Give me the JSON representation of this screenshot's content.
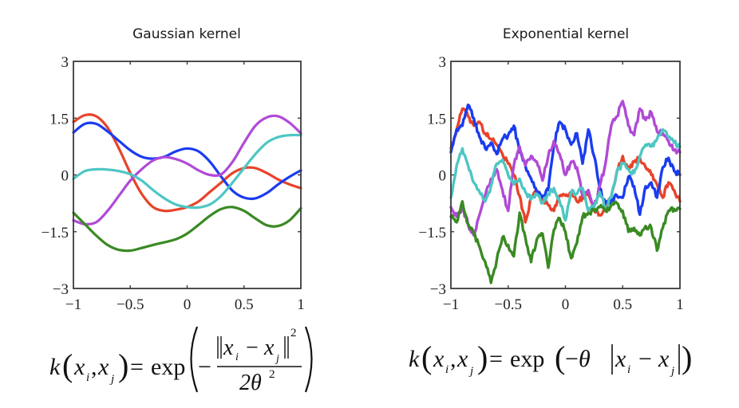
{
  "chart_data": [
    {
      "type": "line",
      "title": "Gaussian kernel",
      "xlabel": "",
      "ylabel": "",
      "xlim": [
        -1,
        1
      ],
      "ylim": [
        -3,
        3
      ],
      "xticks": [
        "−1",
        "−0.5",
        "0",
        "0.5",
        "1"
      ],
      "xtick_values": [
        -1,
        -0.5,
        0,
        0.5,
        1
      ],
      "yticks": [
        "3",
        "1.5",
        "0",
        "−1.5",
        "−3"
      ],
      "ytick_values": [
        3,
        1.5,
        0,
        -1.5,
        -3
      ],
      "grid": false,
      "x": [
        -1,
        -0.9,
        -0.8,
        -0.7,
        -0.6,
        -0.5,
        -0.4,
        -0.3,
        -0.2,
        -0.1,
        0,
        0.1,
        0.2,
        0.3,
        0.4,
        0.5,
        0.6,
        0.7,
        0.8,
        0.9,
        1
      ],
      "series": [
        {
          "name": "red",
          "color": "#e8432a",
          "values": [
            1.4,
            1.58,
            1.55,
            1.25,
            0.7,
            0.05,
            -0.5,
            -0.85,
            -0.95,
            -0.92,
            -0.85,
            -0.7,
            -0.45,
            -0.2,
            0.05,
            0.18,
            0.18,
            0.05,
            -0.12,
            -0.25,
            -0.35
          ]
        },
        {
          "name": "blue",
          "color": "#1a3cf0",
          "values": [
            1.12,
            1.35,
            1.35,
            1.15,
            0.9,
            0.65,
            0.48,
            0.43,
            0.48,
            0.62,
            0.7,
            0.62,
            0.35,
            -0.05,
            -0.42,
            -0.6,
            -0.62,
            -0.48,
            -0.25,
            -0.05,
            0.12
          ]
        },
        {
          "name": "purple",
          "color": "#b04ad6",
          "values": [
            -1.2,
            -1.3,
            -1.25,
            -0.95,
            -0.55,
            -0.15,
            0.15,
            0.38,
            0.47,
            0.42,
            0.3,
            0.12,
            0.0,
            0.02,
            0.35,
            0.85,
            1.3,
            1.52,
            1.55,
            1.38,
            1.1
          ]
        },
        {
          "name": "cyan",
          "color": "#4ec6c4",
          "values": [
            -0.1,
            0.1,
            0.15,
            0.14,
            0.1,
            0.02,
            -0.15,
            -0.4,
            -0.62,
            -0.78,
            -0.85,
            -0.86,
            -0.78,
            -0.55,
            -0.2,
            0.18,
            0.55,
            0.85,
            1.0,
            1.05,
            1.05
          ]
        },
        {
          "name": "green",
          "color": "#3a8a23",
          "values": [
            -1.0,
            -1.3,
            -1.6,
            -1.85,
            -1.98,
            -2.0,
            -1.93,
            -1.85,
            -1.78,
            -1.7,
            -1.55,
            -1.32,
            -1.08,
            -0.9,
            -0.85,
            -0.95,
            -1.15,
            -1.33,
            -1.35,
            -1.2,
            -0.88
          ]
        }
      ],
      "formula": {
        "lhs_k": "k",
        "lhs_args": "x",
        "sub_i": "i",
        "sub_j": "j",
        "comma": ",",
        "equals": "=",
        "exp": "exp",
        "minus": "−",
        "numer_x": "x",
        "numer_minus": "−",
        "power": "2",
        "denom": "2θ",
        "denom_power": "2"
      }
    },
    {
      "type": "line",
      "title": "Exponential kernel",
      "xlabel": "",
      "ylabel": "",
      "xlim": [
        -1,
        1
      ],
      "ylim": [
        -3,
        3
      ],
      "xticks": [
        "−1",
        "−0.5",
        "0",
        "0.5",
        "1"
      ],
      "xtick_values": [
        -1,
        -0.5,
        0,
        0.5,
        1
      ],
      "yticks": [
        "3",
        "1.5",
        "0",
        "−1.5",
        "−3"
      ],
      "ytick_values": [
        3,
        1.5,
        0,
        -1.5,
        -3
      ],
      "grid": false,
      "x": [
        -1,
        -0.95,
        -0.9,
        -0.85,
        -0.8,
        -0.75,
        -0.7,
        -0.65,
        -0.6,
        -0.55,
        -0.5,
        -0.45,
        -0.4,
        -0.35,
        -0.3,
        -0.25,
        -0.2,
        -0.15,
        -0.1,
        -0.05,
        0,
        0.05,
        0.1,
        0.15,
        0.2,
        0.25,
        0.3,
        0.35,
        0.4,
        0.45,
        0.5,
        0.55,
        0.6,
        0.65,
        0.7,
        0.75,
        0.8,
        0.85,
        0.9,
        0.95,
        1
      ],
      "series": [
        {
          "name": "red",
          "color": "#e8432a",
          "values": [
            0.7,
            1.2,
            1.75,
            1.55,
            1.3,
            1.4,
            1.1,
            0.95,
            0.8,
            0.55,
            0.3,
            0.0,
            -0.55,
            -1.25,
            -0.6,
            -0.4,
            -0.65,
            -0.8,
            -0.95,
            -0.55,
            -0.55,
            -0.45,
            -0.7,
            -0.6,
            -0.5,
            -0.9,
            -1.05,
            -0.85,
            -0.6,
            0.1,
            0.5,
            0.15,
            0.35,
            0.45,
            0.2,
            0.0,
            -0.25,
            -0.6,
            -0.2,
            -0.4,
            -0.7
          ]
        },
        {
          "name": "blue",
          "color": "#1a3cf0",
          "values": [
            0.6,
            1.2,
            1.3,
            1.85,
            1.5,
            1.0,
            0.7,
            0.85,
            0.55,
            0.95,
            1.05,
            1.3,
            0.6,
            0.25,
            -0.1,
            -0.5,
            -0.55,
            -0.4,
            0.8,
            1.4,
            1.2,
            0.8,
            1.1,
            0.3,
            1.2,
            0.5,
            -0.35,
            -0.75,
            -0.7,
            -0.55,
            -0.6,
            -0.05,
            -0.3,
            -1.05,
            -0.3,
            -0.2,
            -0.6,
            0.2,
            0.45,
            0.1,
            0.0
          ]
        },
        {
          "name": "purple",
          "color": "#b04ad6",
          "values": [
            -0.85,
            -1.1,
            -0.85,
            -1.3,
            -1.6,
            -1.05,
            -0.55,
            -0.1,
            0.15,
            -0.4,
            -0.95,
            0.25,
            0.75,
            0.25,
            0.5,
            0.35,
            -0.15,
            0.5,
            0.9,
            0.55,
            0.0,
            0.35,
            0.2,
            -0.55,
            -0.4,
            -0.85,
            -0.3,
            0.3,
            1.3,
            1.55,
            1.95,
            1.3,
            1.05,
            1.75,
            1.45,
            1.65,
            1.15,
            1.1,
            0.9,
            0.65,
            0.6
          ]
        },
        {
          "name": "cyan",
          "color": "#4ec6c4",
          "values": [
            -0.6,
            0.25,
            0.7,
            0.25,
            -0.2,
            -0.45,
            -0.7,
            -0.3,
            0.3,
            0.4,
            0.0,
            -0.25,
            -0.1,
            -0.45,
            -0.65,
            -0.5,
            -0.75,
            -0.5,
            -0.35,
            -0.7,
            -1.2,
            -0.45,
            -0.5,
            -0.35,
            -0.95,
            -0.85,
            -0.45,
            -0.9,
            -0.6,
            0.1,
            0.3,
            0.15,
            0.05,
            0.5,
            0.8,
            0.75,
            0.95,
            1.2,
            1.0,
            0.85,
            0.75
          ]
        },
        {
          "name": "green",
          "color": "#3a8a23",
          "values": [
            -1.1,
            -1.25,
            -0.7,
            -1.3,
            -1.55,
            -1.9,
            -2.3,
            -2.85,
            -2.25,
            -1.65,
            -1.85,
            -2.15,
            -1.0,
            -1.65,
            -2.3,
            -1.7,
            -1.55,
            -2.45,
            -1.45,
            -1.15,
            -1.5,
            -2.2,
            -1.8,
            -1.1,
            -1.0,
            -0.95,
            -0.85,
            -0.95,
            -0.8,
            -0.75,
            -0.95,
            -1.5,
            -1.4,
            -1.6,
            -1.35,
            -1.4,
            -2.0,
            -1.4,
            -0.95,
            -0.9,
            -0.9
          ]
        }
      ],
      "formula": {
        "lhs_k": "k",
        "lhs_args": "x",
        "sub_i": "i",
        "sub_j": "j",
        "comma": ",",
        "equals": "=",
        "exp": "exp",
        "minus": "−",
        "theta": "θ",
        "inner_x": "x",
        "inner_minus": "−"
      }
    }
  ]
}
